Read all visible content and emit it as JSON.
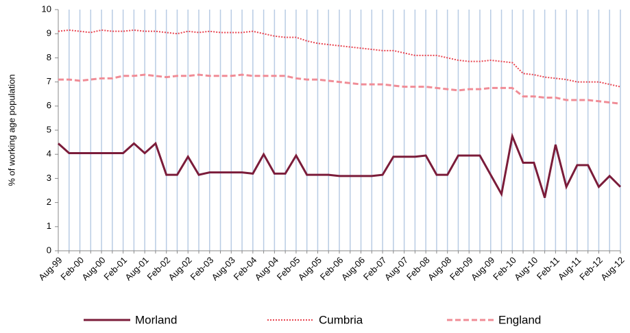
{
  "chart_data": {
    "type": "line",
    "y_label": "% of working age population",
    "categories": [
      "Aug-99",
      null,
      "Feb-00",
      null,
      "Aug-00",
      null,
      "Feb-01",
      null,
      "Aug-01",
      null,
      "Feb-02",
      null,
      "Aug-02",
      null,
      "Feb-03",
      null,
      "Aug-03",
      null,
      "Feb-04",
      null,
      "Aug-04",
      null,
      "Feb-05",
      null,
      "Aug-05",
      null,
      "Feb-06",
      null,
      "Aug-06",
      null,
      "Feb-07",
      null,
      "Aug-07",
      null,
      "Feb-08",
      null,
      "Aug-08",
      null,
      "Feb-09",
      null,
      "Aug-09",
      null,
      "Feb-10",
      null,
      "Aug-10",
      null,
      "Feb-11",
      null,
      "Aug-11",
      null,
      "Feb-12",
      null,
      "Aug-12"
    ],
    "series": [
      {
        "name": "Morland",
        "color": "#7b1c3a",
        "style": "solid",
        "values": [
          4.45,
          4.05,
          4.05,
          4.05,
          4.05,
          4.05,
          4.05,
          4.45,
          4.05,
          4.45,
          3.15,
          3.15,
          3.9,
          3.15,
          3.25,
          3.25,
          3.25,
          3.25,
          3.2,
          4.0,
          3.2,
          3.2,
          3.95,
          3.15,
          3.15,
          3.15,
          3.1,
          3.1,
          3.1,
          3.1,
          3.15,
          3.9,
          3.9,
          3.9,
          3.95,
          3.15,
          3.15,
          3.95,
          3.95,
          3.95,
          3.15,
          2.35,
          4.75,
          3.65,
          3.65,
          2.2,
          4.4,
          2.65,
          3.55,
          3.55,
          2.65,
          3.1,
          2.65
        ]
      },
      {
        "name": "Cumbria",
        "color": "#e8434f",
        "style": "dotted",
        "values": [
          9.1,
          9.15,
          9.1,
          9.05,
          9.15,
          9.1,
          9.1,
          9.15,
          9.1,
          9.1,
          9.05,
          9.0,
          9.1,
          9.05,
          9.1,
          9.05,
          9.05,
          9.05,
          9.1,
          9.0,
          8.9,
          8.85,
          8.85,
          8.7,
          8.6,
          8.55,
          8.5,
          8.45,
          8.4,
          8.35,
          8.3,
          8.3,
          8.2,
          8.1,
          8.1,
          8.1,
          8.0,
          7.9,
          7.85,
          7.85,
          7.9,
          7.85,
          7.8,
          7.35,
          7.3,
          7.2,
          7.15,
          7.1,
          7.0,
          7.0,
          7.0,
          6.9,
          6.8
        ]
      },
      {
        "name": "England",
        "color": "#f08c96",
        "style": "dashed",
        "values": [
          7.1,
          7.1,
          7.05,
          7.1,
          7.15,
          7.15,
          7.25,
          7.25,
          7.3,
          7.25,
          7.2,
          7.25,
          7.25,
          7.3,
          7.25,
          7.25,
          7.25,
          7.3,
          7.25,
          7.25,
          7.25,
          7.25,
          7.15,
          7.1,
          7.1,
          7.05,
          7.0,
          6.95,
          6.9,
          6.9,
          6.9,
          6.85,
          6.8,
          6.8,
          6.8,
          6.75,
          6.7,
          6.65,
          6.7,
          6.7,
          6.75,
          6.75,
          6.75,
          6.4,
          6.4,
          6.35,
          6.35,
          6.25,
          6.25,
          6.25,
          6.2,
          6.15,
          6.1
        ]
      }
    ],
    "ylim": [
      0,
      10
    ],
    "yticks": [
      0,
      1,
      2,
      3,
      4,
      5,
      6,
      7,
      8,
      9,
      10
    ],
    "grid": true,
    "grid_color": "#b8cce4",
    "legend": "bottom"
  }
}
